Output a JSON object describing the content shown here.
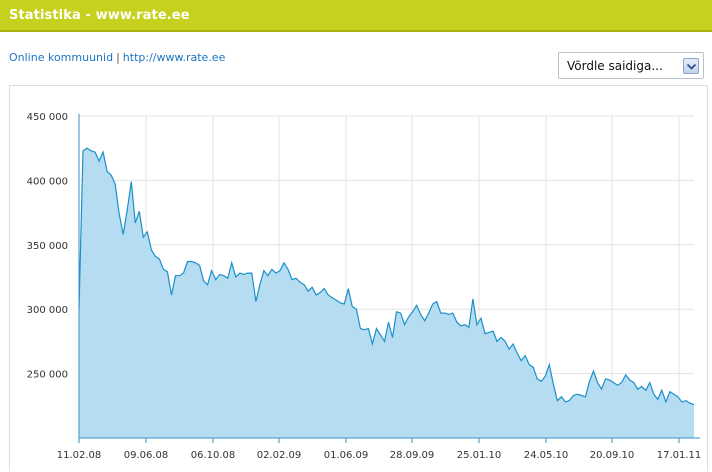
{
  "header": {
    "title": "Statistika - www.rate.ee"
  },
  "nav": {
    "link1": "Online kommuunid",
    "separator": "|",
    "link2": "http://www.rate.ee"
  },
  "compare_select": {
    "value": "Võrdle saidiga...",
    "icon": "chevron-down-icon"
  },
  "colors": {
    "header": "#c6d11d",
    "line": "#1a91c9",
    "area": "#b6dcf1",
    "link": "#1b74c3"
  },
  "chart_data": {
    "type": "area",
    "ylim": [
      200000,
      450000
    ],
    "yticks": [
      250000,
      300000,
      350000,
      400000,
      450000
    ],
    "ytick_labels": [
      "250 000",
      "300 000",
      "350 000",
      "400 000",
      "450 000"
    ],
    "xticks": [
      "11.02.08",
      "09.06.08",
      "06.10.08",
      "02.02.09",
      "01.06.09",
      "28.09.09",
      "25.01.10",
      "24.05.10",
      "20.09.10",
      "17.01.11"
    ],
    "grid": true,
    "values": [
      300000,
      423000,
      425000,
      423000,
      422000,
      415000,
      422000,
      407000,
      404000,
      397000,
      374000,
      358000,
      377000,
      399000,
      367000,
      376000,
      356000,
      360000,
      346000,
      341000,
      339000,
      331000,
      329000,
      311000,
      326000,
      326000,
      328000,
      337000,
      337000,
      336000,
      334000,
      322000,
      319000,
      330000,
      323000,
      327000,
      326000,
      324000,
      336000,
      325000,
      328000,
      327000,
      328000,
      328000,
      306000,
      319000,
      330000,
      326000,
      331000,
      328000,
      330000,
      336000,
      331000,
      323000,
      324000,
      321000,
      319000,
      314000,
      317000,
      311000,
      313000,
      316000,
      311000,
      309000,
      307000,
      305000,
      304000,
      316000,
      302000,
      300000,
      285000,
      284000,
      285000,
      273000,
      285000,
      280000,
      275000,
      290000,
      278000,
      298000,
      297000,
      288000,
      294000,
      298000,
      303000,
      296000,
      291000,
      297000,
      304000,
      306000,
      297000,
      297000,
      296000,
      297000,
      290000,
      287000,
      288000,
      286000,
      308000,
      288000,
      293000,
      281000,
      282000,
      283000,
      275000,
      278000,
      275000,
      269000,
      273000,
      266000,
      260000,
      264000,
      257000,
      255000,
      246000,
      244000,
      248000,
      257000,
      242000,
      229000,
      232000,
      228000,
      229000,
      233000,
      234000,
      233000,
      232000,
      244000,
      252000,
      243000,
      238000,
      246000,
      245000,
      243000,
      241000,
      243000,
      249000,
      245000,
      243000,
      238000,
      240000,
      237000,
      243000,
      234000,
      230000,
      237000,
      228000,
      236000,
      234000,
      232000,
      228000,
      229000,
      227000,
      226000
    ]
  }
}
